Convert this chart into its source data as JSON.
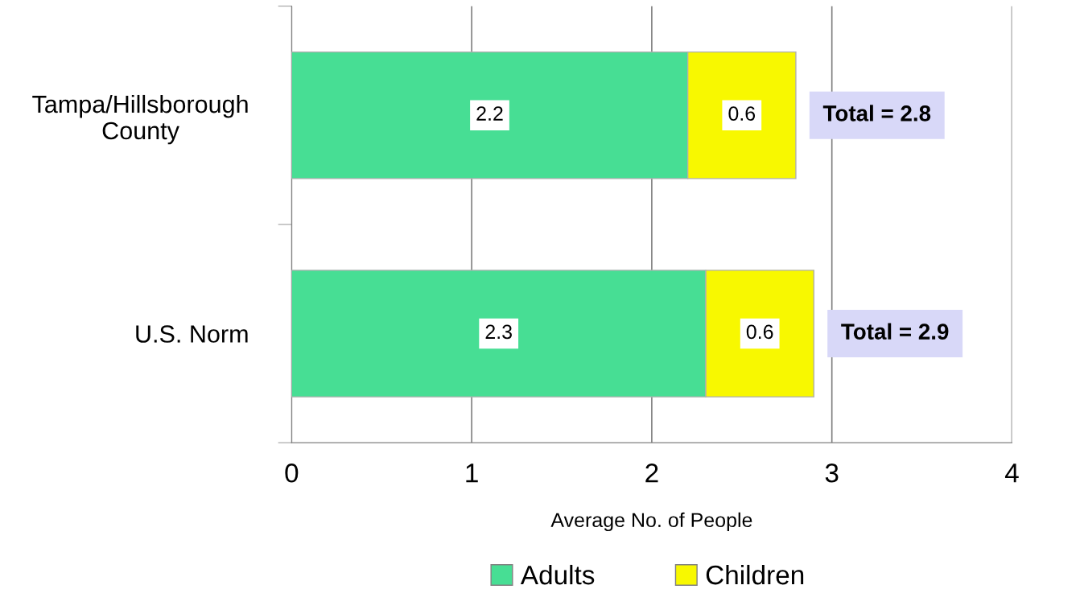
{
  "chart_data": {
    "type": "bar",
    "orientation": "horizontal",
    "stacked": true,
    "categories": [
      "Tampa/Hillsborough\nCounty",
      "U.S. Norm"
    ],
    "series": [
      {
        "name": "Adults",
        "color": "#47de94",
        "values": [
          2.2,
          2.3
        ]
      },
      {
        "name": "Children",
        "color": "#f8f800",
        "values": [
          0.6,
          0.6
        ]
      }
    ],
    "xlabel": "Average No. of People",
    "xlim": [
      0,
      4
    ],
    "xticks": [
      0,
      1,
      2,
      3,
      4
    ],
    "grid": "x",
    "legend": "bottom",
    "data_labels": true,
    "totals": [
      "Total = 2.8",
      "Total = 2.9"
    ]
  }
}
